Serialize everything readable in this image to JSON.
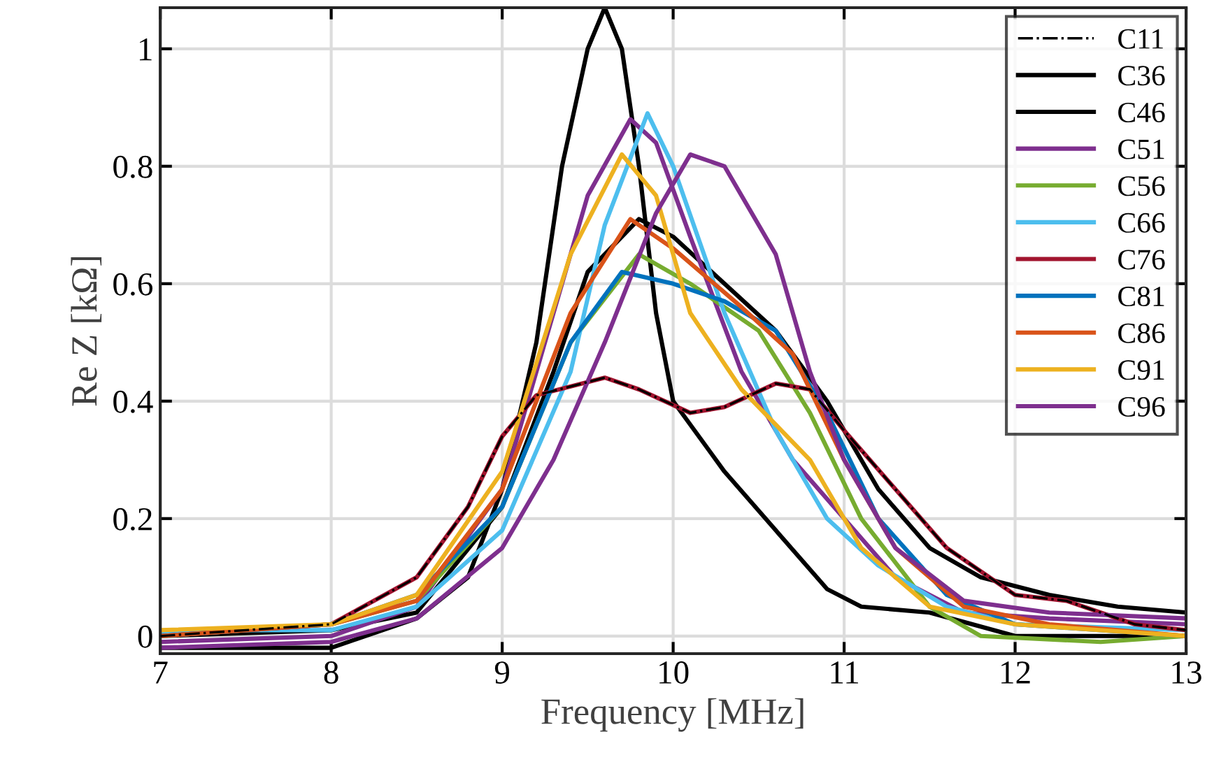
{
  "chart_data": {
    "type": "line",
    "xlabel": "Frequency [MHz]",
    "ylabel": "Re Z [kΩ]",
    "xlim": [
      7,
      13
    ],
    "ylim": [
      -0.03,
      1.07
    ],
    "xticks": [
      7,
      8,
      9,
      10,
      11,
      12,
      13
    ],
    "yticks": [
      0,
      0.2,
      0.4,
      0.6,
      0.8,
      1
    ],
    "grid": true,
    "legend": "top right",
    "series": [
      {
        "name": "C11",
        "color": "#000000",
        "line_style": "dashdot",
        "x": [
          7,
          8,
          8.5,
          8.8,
          9,
          9.2,
          9.6,
          9.8,
          10.1,
          10.3,
          10.6,
          10.8,
          11,
          11.3,
          11.6,
          12,
          12.3,
          12.7,
          13
        ],
        "values": [
          0.0,
          0.02,
          0.1,
          0.22,
          0.34,
          0.41,
          0.44,
          0.42,
          0.38,
          0.39,
          0.43,
          0.42,
          0.35,
          0.25,
          0.15,
          0.07,
          0.06,
          0.02,
          0.01
        ]
      },
      {
        "name": "C36",
        "color": "#000000",
        "x": [
          7,
          8,
          8.5,
          8.8,
          9,
          9.2,
          9.35,
          9.5,
          9.6,
          9.7,
          9.8,
          9.9,
          10,
          10.3,
          10.6,
          10.9,
          11.1,
          11.5,
          12,
          12.5,
          13
        ],
        "values": [
          -0.02,
          -0.02,
          0.03,
          0.1,
          0.25,
          0.5,
          0.8,
          1.0,
          1.07,
          1.0,
          0.8,
          0.55,
          0.4,
          0.28,
          0.18,
          0.08,
          0.05,
          0.04,
          0.0,
          0.0,
          0.0
        ]
      },
      {
        "name": "C46",
        "color": "#000000",
        "x": [
          7,
          8,
          8.5,
          9,
          9.3,
          9.5,
          9.8,
          10,
          10.3,
          10.6,
          10.9,
          11.2,
          11.5,
          11.8,
          12.2,
          12.6,
          13
        ],
        "values": [
          0.0,
          0.01,
          0.04,
          0.22,
          0.45,
          0.62,
          0.71,
          0.68,
          0.6,
          0.52,
          0.4,
          0.25,
          0.15,
          0.1,
          0.07,
          0.05,
          0.04
        ]
      },
      {
        "name": "C51",
        "color": "#7e2f8e",
        "x": [
          7,
          8,
          8.5,
          9,
          9.3,
          9.5,
          9.75,
          9.9,
          10.1,
          10.4,
          10.7,
          11,
          11.3,
          11.7,
          12.2,
          13
        ],
        "values": [
          -0.01,
          0.0,
          0.05,
          0.25,
          0.55,
          0.75,
          0.88,
          0.84,
          0.68,
          0.45,
          0.3,
          0.2,
          0.1,
          0.04,
          0.03,
          0.02
        ]
      },
      {
        "name": "C56",
        "color": "#77ac30",
        "x": [
          7,
          8,
          8.5,
          9,
          9.4,
          9.8,
          10.1,
          10.5,
          10.8,
          11.1,
          11.5,
          11.8,
          12.5,
          13
        ],
        "values": [
          0.0,
          0.02,
          0.06,
          0.22,
          0.5,
          0.65,
          0.6,
          0.52,
          0.38,
          0.2,
          0.05,
          0.0,
          -0.01,
          0.0
        ]
      },
      {
        "name": "C66",
        "color": "#4dbeee",
        "x": [
          7,
          7.3,
          8,
          8.5,
          9,
          9.4,
          9.6,
          9.85,
          10,
          10.3,
          10.6,
          10.9,
          11.2,
          11.6,
          12,
          13
        ],
        "values": [
          0.005,
          0.01,
          0.01,
          0.05,
          0.18,
          0.45,
          0.7,
          0.89,
          0.8,
          0.55,
          0.35,
          0.2,
          0.12,
          0.05,
          0.02,
          0.01
        ]
      },
      {
        "name": "C76",
        "color": "#a2142f",
        "x": [
          7,
          8,
          8.5,
          8.8,
          9,
          9.2,
          9.6,
          9.8,
          10.1,
          10.3,
          10.6,
          10.8,
          11,
          11.3,
          11.6,
          12,
          12.3,
          12.7,
          13
        ],
        "values": [
          0.0,
          0.02,
          0.1,
          0.22,
          0.34,
          0.41,
          0.44,
          0.42,
          0.38,
          0.39,
          0.43,
          0.42,
          0.35,
          0.25,
          0.15,
          0.07,
          0.06,
          0.02,
          0.01
        ]
      },
      {
        "name": "C81",
        "color": "#0072bd",
        "x": [
          7,
          8,
          8.5,
          9,
          9.4,
          9.7,
          10,
          10.3,
          10.6,
          10.9,
          11.2,
          11.6,
          12,
          13
        ],
        "values": [
          0.0,
          0.02,
          0.07,
          0.22,
          0.5,
          0.62,
          0.6,
          0.57,
          0.52,
          0.38,
          0.2,
          0.07,
          0.02,
          0.0
        ]
      },
      {
        "name": "C86",
        "color": "#d95319",
        "x": [
          7,
          8,
          8.5,
          9,
          9.4,
          9.75,
          10,
          10.4,
          10.7,
          11,
          11.3,
          11.7,
          12.2,
          13
        ],
        "values": [
          0.0,
          0.02,
          0.06,
          0.25,
          0.55,
          0.71,
          0.66,
          0.56,
          0.48,
          0.3,
          0.15,
          0.05,
          0.02,
          0.0
        ]
      },
      {
        "name": "C91",
        "color": "#edb120",
        "x": [
          7,
          8,
          8.5,
          9,
          9.4,
          9.7,
          9.9,
          10.1,
          10.4,
          10.8,
          11.1,
          11.5,
          12,
          13
        ],
        "values": [
          0.01,
          0.02,
          0.07,
          0.28,
          0.65,
          0.82,
          0.75,
          0.55,
          0.42,
          0.3,
          0.15,
          0.05,
          0.02,
          0.0
        ]
      },
      {
        "name": "C96",
        "color": "#7e2f8e",
        "x": [
          7,
          8,
          8.5,
          9,
          9.3,
          9.6,
          9.9,
          10.1,
          10.3,
          10.6,
          10.8,
          11,
          11.3,
          11.7,
          12.2,
          13
        ],
        "values": [
          -0.02,
          -0.01,
          0.03,
          0.15,
          0.3,
          0.5,
          0.72,
          0.82,
          0.8,
          0.65,
          0.45,
          0.3,
          0.15,
          0.06,
          0.04,
          0.03
        ]
      }
    ]
  }
}
